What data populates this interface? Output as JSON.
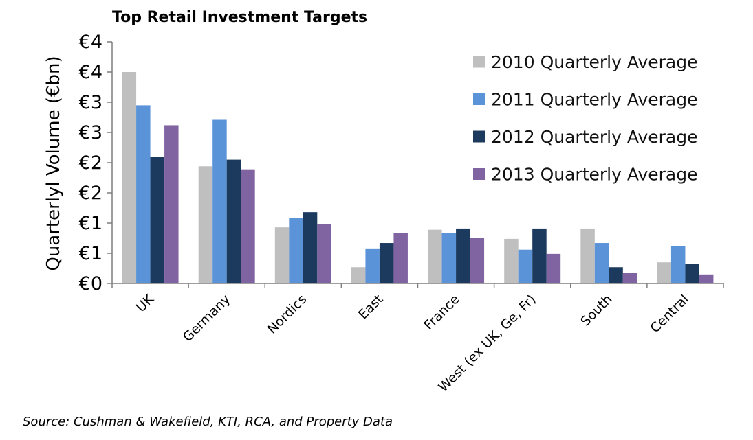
{
  "chart_data": {
    "type": "bar",
    "title": "Top Retail Investment Targets",
    "ylabel": "Quarterlyl Volume (€bn)",
    "xlabel": "",
    "ylim": [
      0,
      4
    ],
    "yticks": [
      0,
      0.5,
      1,
      1.5,
      2,
      2.5,
      3,
      3.5,
      4
    ],
    "ytick_labels": [
      "€0",
      "€1",
      "€1",
      "€2",
      "€2",
      "€3",
      "€3",
      "€4",
      "€4"
    ],
    "categories": [
      "UK",
      "Germany",
      "Nordics",
      "East",
      "France",
      "West (ex UK, Ge, Fr)",
      "South",
      "Central"
    ],
    "series": [
      {
        "name": "2010 Quarterly Average",
        "color": "#bfbfbf",
        "values": [
          3.5,
          1.94,
          0.93,
          0.27,
          0.89,
          0.74,
          0.91,
          0.35
        ]
      },
      {
        "name": "2011 Quarterly Average",
        "color": "#5b93d8",
        "values": [
          2.95,
          2.71,
          1.08,
          0.57,
          0.83,
          0.56,
          0.67,
          0.62
        ]
      },
      {
        "name": "2012 Quarterly Average",
        "color": "#1b3a5e",
        "values": [
          2.1,
          2.05,
          1.18,
          0.67,
          0.91,
          0.91,
          0.27,
          0.32
        ]
      },
      {
        "name": "2013 Quarterly Average",
        "color": "#8064a2",
        "values": [
          2.62,
          1.89,
          0.98,
          0.84,
          0.75,
          0.49,
          0.18,
          0.15
        ]
      }
    ],
    "legend_position": "top-right",
    "grid": false
  },
  "source_text": "Source: Cushman & Wakefield, KTI, RCA, and Property Data"
}
